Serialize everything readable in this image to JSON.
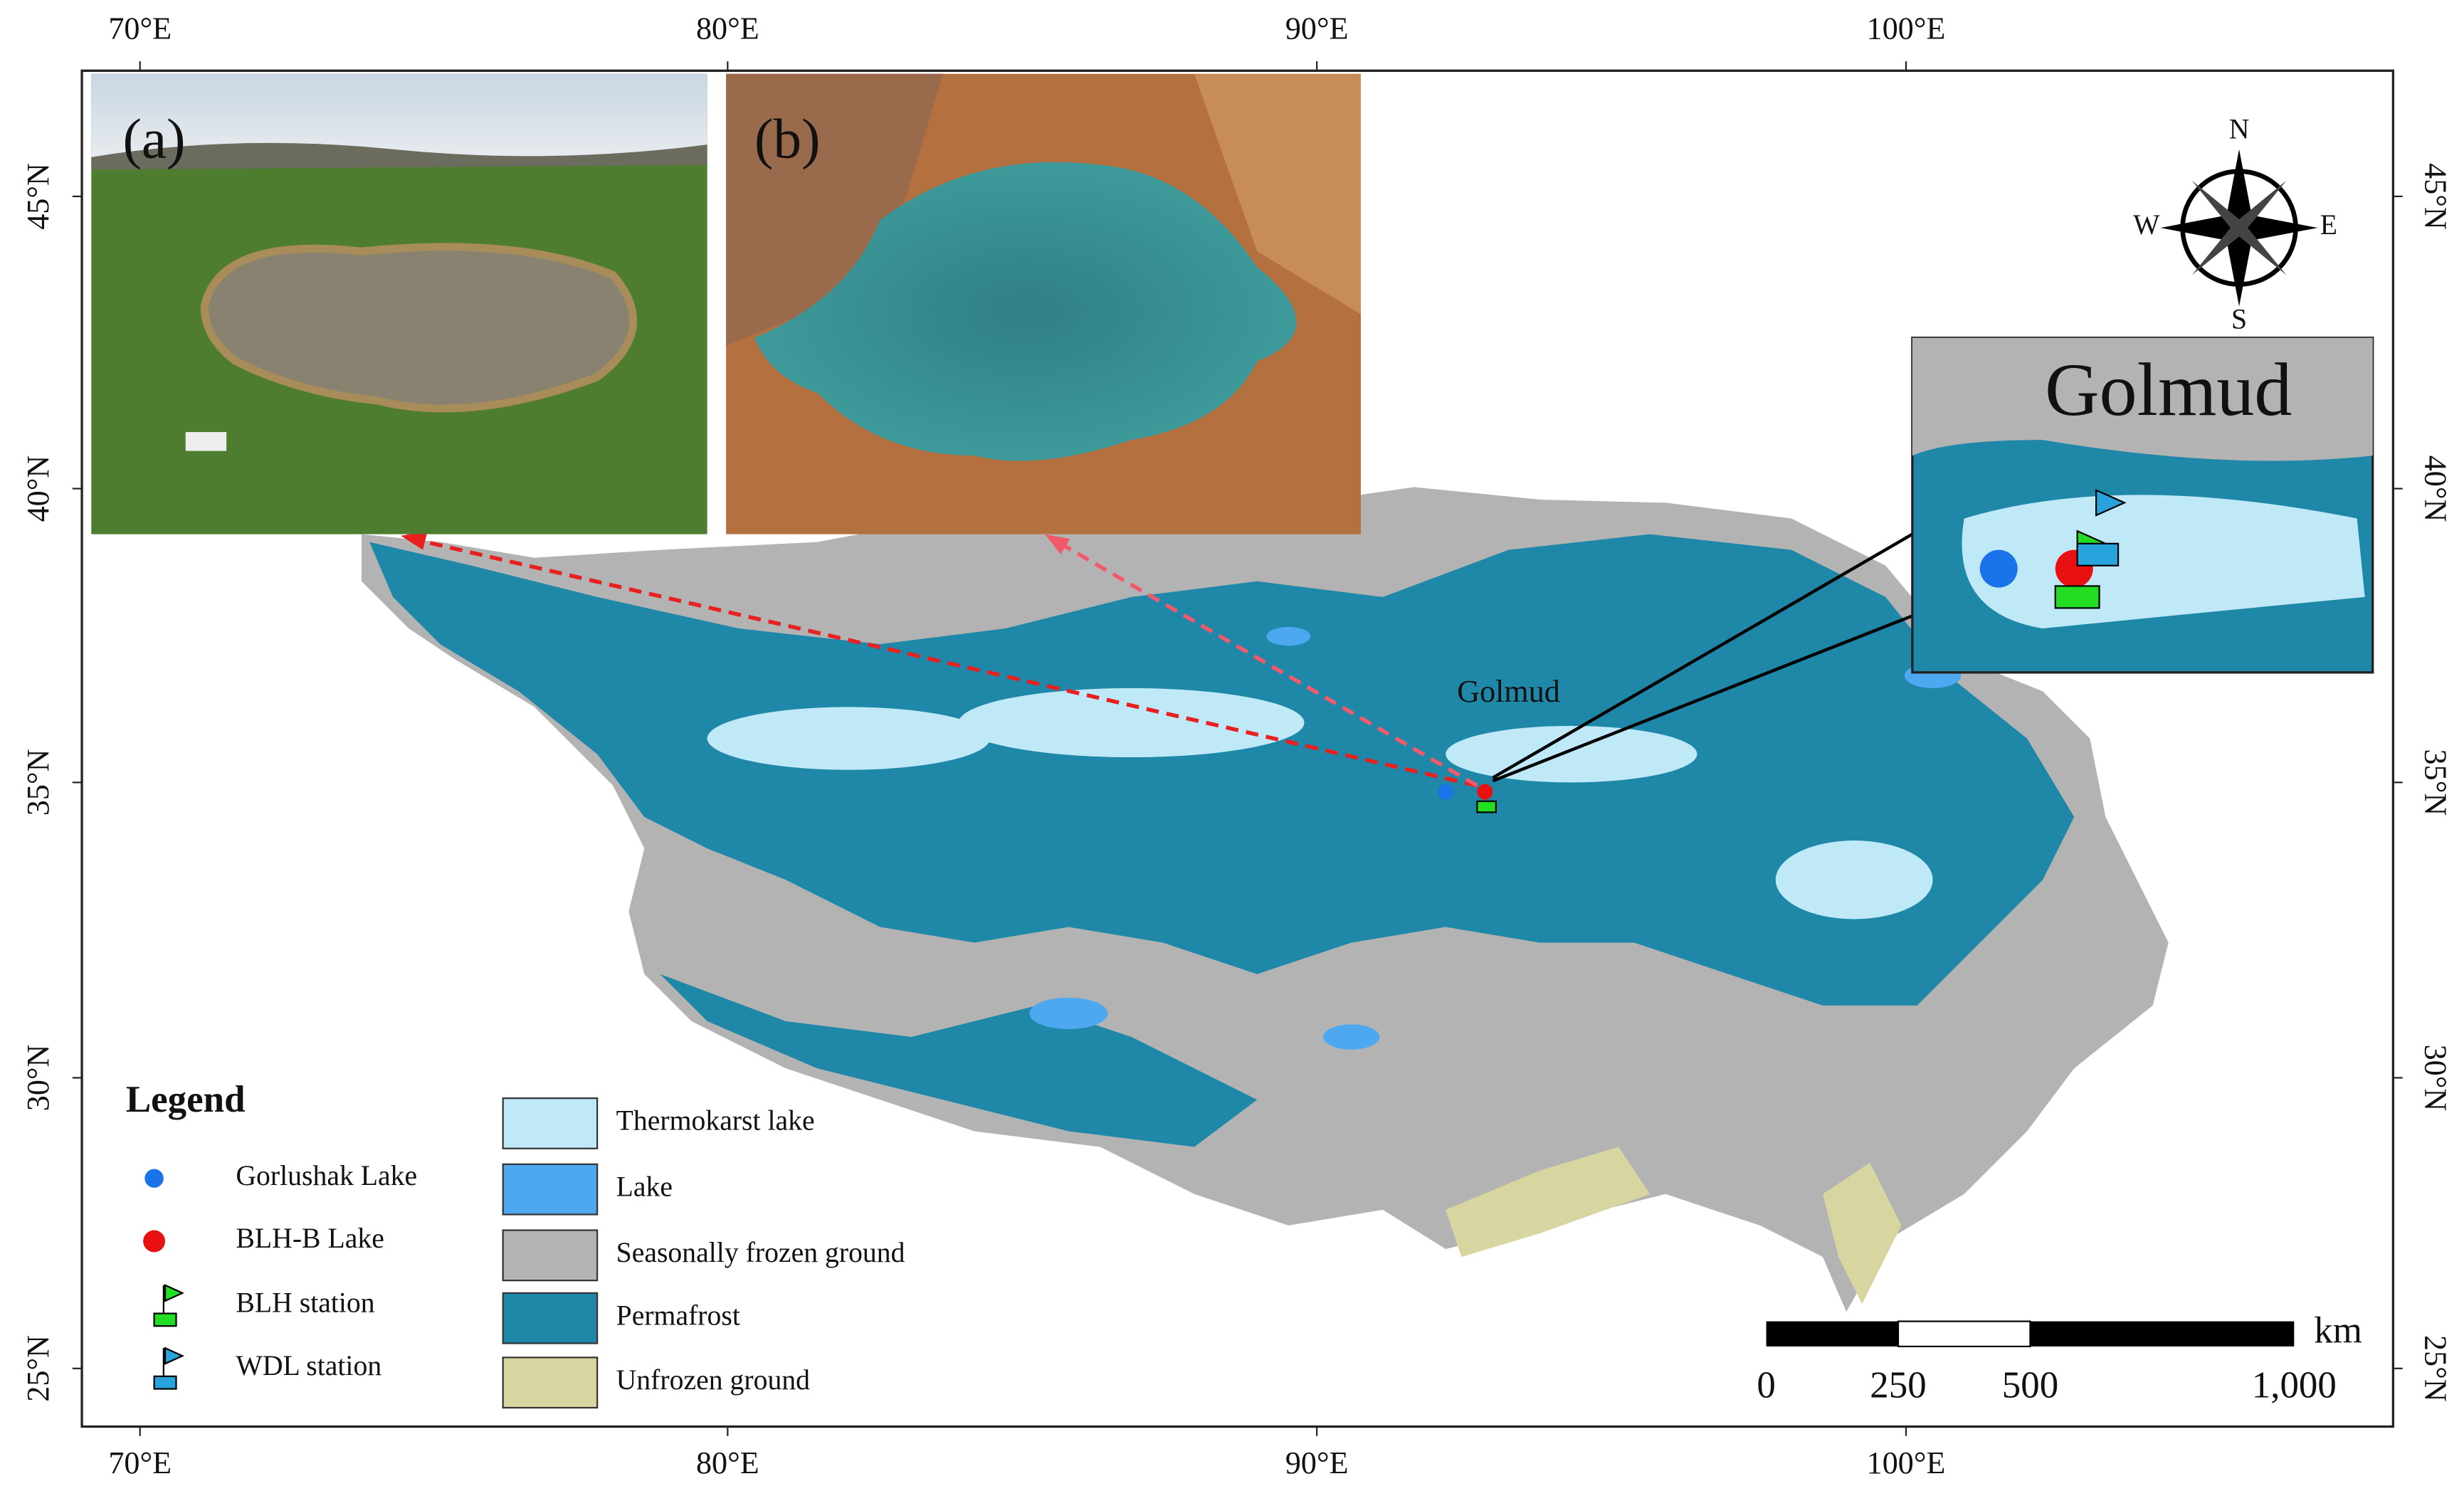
{
  "map": {
    "lon_labels": [
      "70°E",
      "80°E",
      "90°E",
      "100°E"
    ],
    "lat_labels": [
      "45°N",
      "40°N",
      "35°N",
      "30°N",
      "25°N"
    ],
    "insets": {
      "photo_a_label": "(a)",
      "photo_b_label": "(b)",
      "zoom_title": "Golmud"
    },
    "place_label": "Golmud",
    "compass": {
      "n": "N",
      "s": "S",
      "e": "E",
      "w": "W"
    },
    "legend": {
      "title": "Legend",
      "sites": [
        "Gorlushak Lake",
        "BLH-B Lake",
        "BLH station",
        "WDL station"
      ],
      "classes": [
        "Thermokarst lake",
        "Lake",
        "Seasonally frozen ground",
        "Permafrost",
        "Unfrozen ground"
      ]
    },
    "scale_bar": {
      "labels": [
        "0",
        "250",
        "500",
        "1,000"
      ],
      "unit": "km"
    }
  }
}
